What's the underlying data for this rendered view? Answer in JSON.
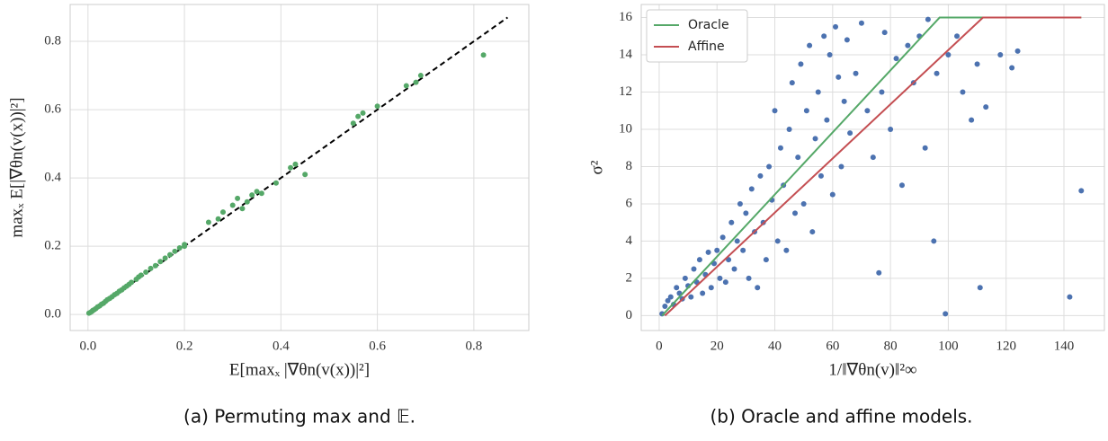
{
  "chart_data": [
    {
      "type": "scatter",
      "caption": "(a) Permuting max and 𝔼.",
      "x_label": "E[maxₓ |∇θn(v(x))|²]",
      "y_label": "maxₓ E[|∇θn(v(x))|²]",
      "color": "#55a868",
      "x": [
        0.002,
        0.005,
        0.008,
        0.01,
        0.013,
        0.016,
        0.02,
        0.024,
        0.028,
        0.032,
        0.036,
        0.04,
        0.045,
        0.05,
        0.055,
        0.06,
        0.065,
        0.07,
        0.075,
        0.08,
        0.085,
        0.09,
        0.1,
        0.105,
        0.11,
        0.12,
        0.13,
        0.14,
        0.15,
        0.16,
        0.17,
        0.18,
        0.19,
        0.2,
        0.2,
        0.25,
        0.27,
        0.28,
        0.3,
        0.31,
        0.32,
        0.33,
        0.34,
        0.35,
        0.36,
        0.39,
        0.42,
        0.43,
        0.45,
        0.55,
        0.56,
        0.57,
        0.6,
        0.66,
        0.68,
        0.69,
        0.82
      ],
      "values": [
        0.004,
        0.006,
        0.009,
        0.012,
        0.014,
        0.017,
        0.022,
        0.025,
        0.03,
        0.033,
        0.038,
        0.043,
        0.047,
        0.052,
        0.058,
        0.062,
        0.068,
        0.072,
        0.078,
        0.083,
        0.088,
        0.094,
        0.103,
        0.11,
        0.115,
        0.124,
        0.135,
        0.143,
        0.155,
        0.165,
        0.175,
        0.185,
        0.195,
        0.205,
        0.2,
        0.27,
        0.28,
        0.3,
        0.32,
        0.34,
        0.31,
        0.33,
        0.35,
        0.36,
        0.355,
        0.385,
        0.43,
        0.44,
        0.41,
        0.56,
        0.58,
        0.59,
        0.61,
        0.67,
        0.68,
        0.7,
        0.76
      ],
      "reference_line": {
        "x": [
          0,
          0.87
        ],
        "values": [
          0,
          0.87
        ],
        "color": "#000000",
        "dashed": true
      },
      "xlim": [
        -0.037,
        0.914
      ],
      "ylim": [
        -0.047,
        0.908
      ],
      "xticks": [
        {
          "value": 0,
          "label": "0.0"
        },
        0.2,
        0.4,
        0.6,
        0.8
      ],
      "yticks": [
        {
          "value": 0,
          "label": "0.0"
        },
        0.2,
        0.4,
        0.6,
        0.8
      ],
      "grid": true
    },
    {
      "type": "scatter",
      "caption": "(b) Oracle and affine models.",
      "x_label": "1/‖∇θn(v)‖²∞",
      "y_label": "σ²",
      "color": "#4c72b0",
      "x": [
        1,
        2,
        3,
        4,
        5,
        6,
        7,
        8,
        9,
        10,
        11,
        12,
        13,
        14,
        15,
        16,
        17,
        18,
        19,
        20,
        21,
        22,
        23,
        24,
        25,
        26,
        27,
        28,
        29,
        30,
        31,
        32,
        33,
        34,
        35,
        36,
        37,
        38,
        39,
        40,
        41,
        42,
        43,
        44,
        45,
        46,
        47,
        48,
        49,
        50,
        51,
        52,
        53,
        54,
        55,
        56,
        57,
        58,
        59,
        60,
        61,
        62,
        63,
        64,
        65,
        66,
        68,
        70,
        72,
        74,
        76,
        77,
        78,
        80,
        82,
        84,
        86,
        88,
        90,
        92,
        93,
        95,
        96,
        99,
        100,
        103,
        105,
        108,
        110,
        111,
        113,
        118,
        122,
        124,
        142,
        146
      ],
      "values": [
        0.1,
        0.5,
        0.8,
        1.0,
        0.6,
        1.5,
        1.2,
        0.9,
        2.0,
        1.6,
        1.0,
        2.5,
        1.8,
        3.0,
        1.2,
        2.2,
        3.4,
        1.5,
        2.8,
        3.5,
        2.0,
        4.2,
        1.8,
        3.0,
        5.0,
        2.5,
        4.0,
        6.0,
        3.5,
        5.5,
        2.0,
        6.8,
        4.5,
        1.5,
        7.5,
        5.0,
        3.0,
        8.0,
        6.2,
        11.0,
        4.0,
        9.0,
        7.0,
        3.5,
        10.0,
        12.5,
        5.5,
        8.5,
        13.5,
        6.0,
        11.0,
        14.5,
        4.5,
        9.5,
        12.0,
        7.5,
        15.0,
        10.5,
        14.0,
        6.5,
        15.5,
        12.8,
        8.0,
        11.5,
        14.8,
        9.8,
        13.0,
        15.7,
        11.0,
        8.5,
        2.3,
        12.0,
        15.2,
        10.0,
        13.8,
        7.0,
        14.5,
        12.5,
        15.0,
        9.0,
        15.9,
        4.0,
        13.0,
        0.1,
        14.0,
        15.0,
        12.0,
        10.5,
        13.5,
        1.5,
        11.2,
        14.0,
        13.3,
        14.2,
        1.0,
        6.7
      ],
      "series": [
        {
          "name": "Oracle",
          "color": "#55a868",
          "x": [
            1,
            97,
            146
          ],
          "values": [
            0,
            16,
            16
          ]
        },
        {
          "name": "Affine",
          "color": "#c44e52",
          "x": [
            2,
            112,
            146
          ],
          "values": [
            0,
            16,
            16
          ]
        }
      ],
      "legend": "upper left",
      "xlim": [
        -6.2,
        154
      ],
      "ylim": [
        -0.8,
        16.7
      ],
      "xticks": [
        0,
        20,
        40,
        60,
        80,
        100,
        120,
        140
      ],
      "yticks": [
        0,
        2,
        4,
        6,
        8,
        10,
        12,
        14,
        16
      ],
      "grid": true
    }
  ]
}
